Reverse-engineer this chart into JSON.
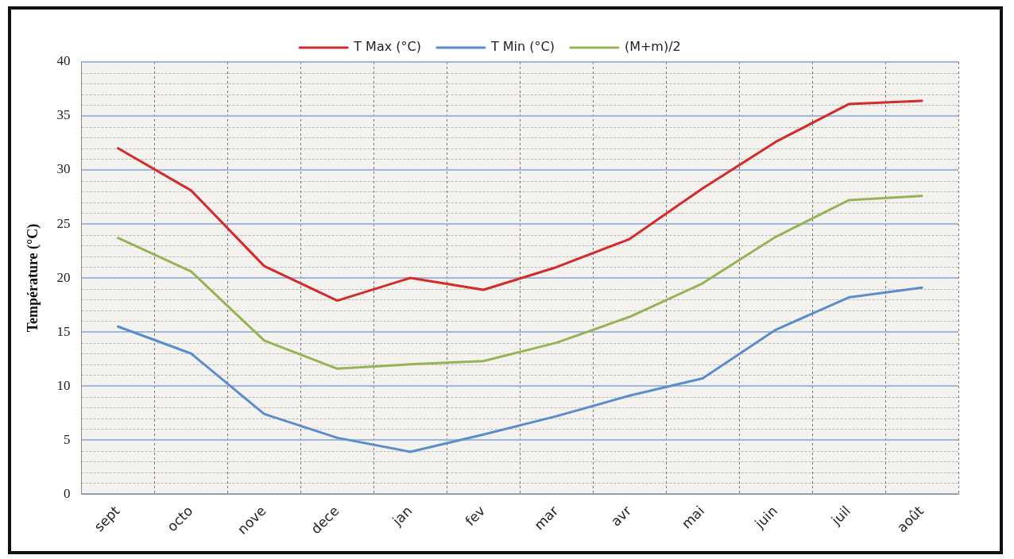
{
  "chart_data": {
    "type": "line",
    "ylabel": "Température (°C)",
    "categories": [
      "sept",
      "octo",
      "nove",
      "dece",
      "jan",
      "fev",
      "mar",
      "avr",
      "mai",
      "juin",
      "juil",
      "août"
    ],
    "series": [
      {
        "name": "T Max (°C)",
        "color": "#d42a2a",
        "values": [
          32,
          28.1,
          21.1,
          17.9,
          20,
          18.9,
          21,
          23.6,
          28.3,
          32.6,
          36.1,
          36.4
        ]
      },
      {
        "name": "T Min (°C)",
        "color": "#5b8ccc",
        "values": [
          15.5,
          13,
          7.4,
          5.2,
          3.9,
          5.5,
          7.2,
          9.1,
          10.7,
          15.2,
          18.2,
          19.1
        ]
      },
      {
        "name": "(M+m)/2",
        "color": "#96b457",
        "values": [
          23.7,
          20.6,
          14.2,
          11.6,
          12,
          12.3,
          14,
          16.4,
          19.5,
          23.8,
          27.2,
          27.6
        ]
      }
    ],
    "ylim": [
      0,
      40
    ],
    "yticks": [
      0,
      5,
      10,
      15,
      20,
      25,
      30,
      35,
      40
    ],
    "grid": true,
    "legend": "top",
    "marker": "none",
    "line_style": "solid"
  }
}
